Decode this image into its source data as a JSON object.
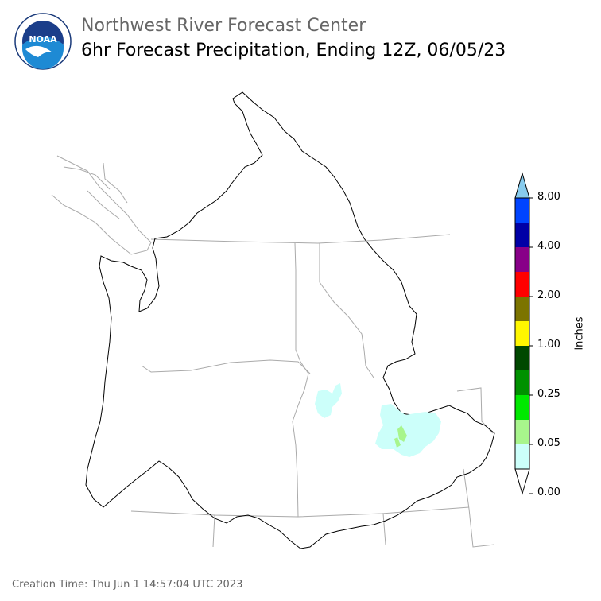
{
  "header": {
    "title": "Northwest River Forecast Center",
    "subtitle": "6hr Forecast Precipitation, Ending 12Z, 06/05/23"
  },
  "logo": {
    "text": "NOAA",
    "ring_text": "NATIONAL OCEANIC AND ATMOSPHERIC ADMINISTRATION · U.S. DEPARTMENT OF COMMERCE",
    "icon": "noaa-logo"
  },
  "colorbar": {
    "unit": "inches",
    "ticks": [
      "8.00",
      "4.00",
      "2.00",
      "1.00",
      "0.25",
      "0.05",
      "0.00"
    ],
    "colors": [
      "#ffffff",
      "#ccfffa",
      "#a8f58c",
      "#00e800",
      "#009100",
      "#004800",
      "#fff700",
      "#7c7400",
      "#ff0000",
      "#880088",
      "#0000a6",
      "#0044ff",
      "#88ccee"
    ]
  },
  "footer": {
    "creation_time": "Creation Time: Thu Jun 1 14:57:04 UTC 2023"
  }
}
